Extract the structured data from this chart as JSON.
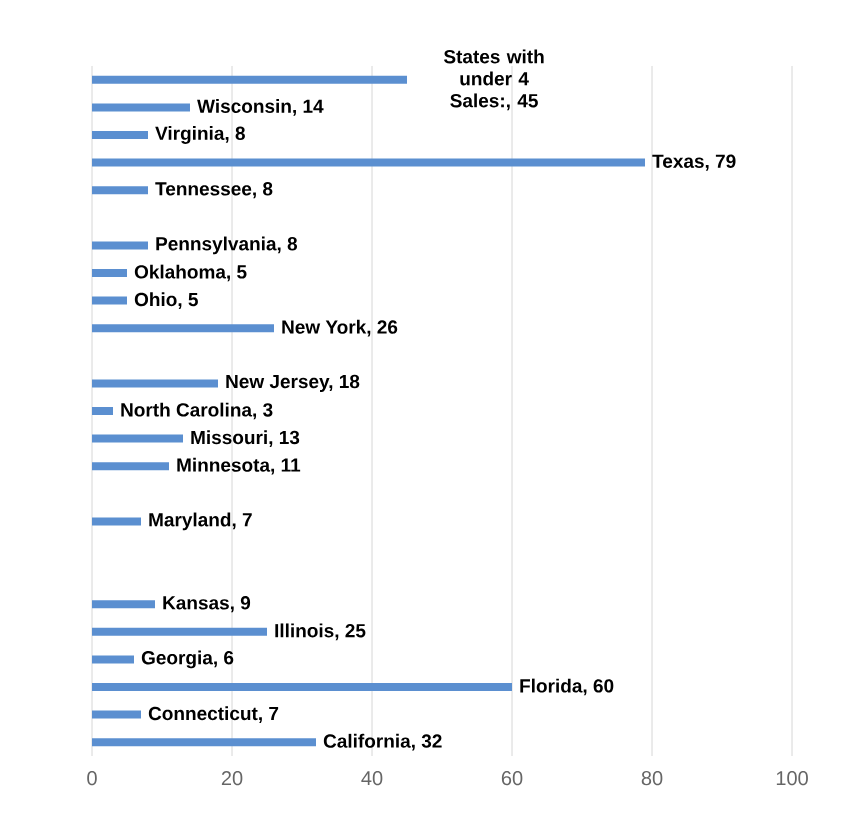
{
  "chart_data": {
    "type": "bar",
    "orientation": "horizontal",
    "categories": [
      null,
      null,
      null,
      null,
      null,
      null,
      null,
      null,
      null,
      null,
      null,
      null,
      null,
      null,
      null,
      null,
      null,
      null,
      null,
      null,
      null,
      null,
      null,
      null,
      null
    ],
    "values": [
      45,
      14,
      8,
      79,
      8,
      null,
      8,
      5,
      5,
      26,
      null,
      18,
      3,
      13,
      11,
      null,
      7,
      null,
      null,
      9,
      25,
      6,
      60,
      7,
      32
    ],
    "value_labels": [
      "States with under 4 Sales:, 45",
      "Wisconsin, 14",
      "Virginia, 8",
      "Texas, 79",
      "Tennessee, 8",
      null,
      "Pennsylvania, 8",
      "Oklahoma, 5",
      "Ohio, 5",
      "New York, 26",
      null,
      "New Jersey, 18",
      "North Carolina, 3",
      "Missouri, 13",
      "Minnesota, 11",
      null,
      "Maryland, 7",
      null,
      null,
      "Kansas, 9",
      "Illinois, 25",
      "Georgia, 6",
      "Florida, 60",
      "Connecticut, 7",
      "California, 32"
    ],
    "color": "#5b8fd0",
    "xlim": [
      0,
      100
    ],
    "xticks": [
      0,
      20,
      40,
      60,
      80,
      100
    ],
    "grid": "x",
    "tick_labels": "x"
  }
}
